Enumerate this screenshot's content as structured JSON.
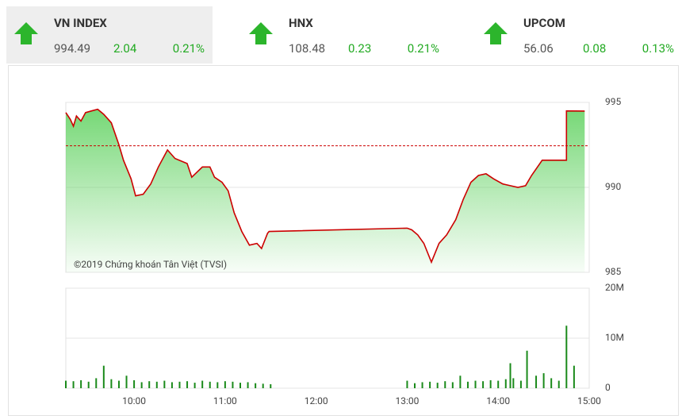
{
  "tickers": [
    {
      "name": "VN INDEX",
      "value": "994.49",
      "change": "2.04",
      "percent": "0.21%"
    },
    {
      "name": "HNX",
      "value": "108.48",
      "change": "0.23",
      "percent": "0.21%"
    },
    {
      "name": "UPCOM",
      "value": "56.06",
      "change": "0.08",
      "percent": "0.13%"
    }
  ],
  "chart_data": [
    {
      "type": "line",
      "annotation": "©2019 Chứng khoán Tân Việt (TVSI)",
      "x": [
        "09:15",
        "09:18",
        "09:20",
        "09:22",
        "09:25",
        "09:28",
        "09:32",
        "09:36",
        "09:40",
        "09:45",
        "09:50",
        "09:53",
        "09:58",
        "10:01",
        "10:06",
        "10:11",
        "10:16",
        "10:22",
        "10:27",
        "10:35",
        "10:38",
        "10:45",
        "10:50",
        "10:53",
        "10:58",
        "11:02",
        "11:06",
        "11:11",
        "11:16",
        "11:21",
        "11:24",
        "11:28",
        "11:29",
        "13:00",
        "13:03",
        "13:07",
        "13:11",
        "13:16",
        "13:21",
        "13:26",
        "13:32",
        "13:37",
        "13:42",
        "13:47",
        "13:52",
        "13:57",
        "14:03",
        "14:08",
        "14:13",
        "14:18",
        "14:22",
        "14:29",
        "14:36",
        "14:45",
        "14:45",
        "14:57"
      ],
      "values": [
        994.4,
        994.0,
        993.6,
        994.2,
        993.9,
        994.4,
        994.5,
        994.6,
        994.3,
        993.8,
        992.5,
        991.6,
        990.5,
        989.5,
        989.6,
        990.2,
        991.2,
        992.2,
        991.7,
        991.4,
        990.6,
        991.2,
        991.2,
        990.6,
        990.3,
        989.8,
        988.5,
        987.4,
        986.6,
        986.7,
        986.4,
        987.3,
        987.4,
        987.6,
        987.5,
        987.2,
        986.7,
        985.6,
        986.7,
        987.2,
        988.1,
        989.3,
        990.3,
        990.7,
        990.8,
        990.5,
        990.2,
        990.1,
        990.0,
        990.1,
        990.7,
        991.6,
        991.6,
        991.6,
        994.5,
        994.49
      ],
      "color": "#cc0000",
      "fill": "#6fd66f",
      "reference_line": 992.45,
      "reference_color": "#cc0000",
      "xlim": [
        "09:15",
        "15:00"
      ],
      "ylim": [
        985,
        995
      ],
      "yticks": [
        985,
        990,
        995
      ],
      "grid": true
    },
    {
      "type": "bar",
      "x": [
        "09:15",
        "09:20",
        "09:25",
        "09:30",
        "09:35",
        "09:40",
        "09:45",
        "09:50",
        "09:55",
        "10:00",
        "10:05",
        "10:10",
        "10:15",
        "10:20",
        "10:25",
        "10:30",
        "10:35",
        "10:40",
        "10:45",
        "10:50",
        "10:55",
        "11:00",
        "11:05",
        "11:10",
        "11:15",
        "11:20",
        "11:25",
        "11:30",
        "13:00",
        "13:05",
        "13:10",
        "13:15",
        "13:20",
        "13:25",
        "13:30",
        "13:35",
        "13:40",
        "13:45",
        "13:50",
        "13:55",
        "14:00",
        "14:05",
        "14:08",
        "14:10",
        "14:15",
        "14:19",
        "14:25",
        "14:30",
        "14:35",
        "14:40",
        "14:45",
        "14:50"
      ],
      "values": [
        1500000,
        1400000,
        1600000,
        1300000,
        2000000,
        4500000,
        1800000,
        1500000,
        2500000,
        1600000,
        1200000,
        1400000,
        1300000,
        1500000,
        1200000,
        1300000,
        1400000,
        1100000,
        1500000,
        1300000,
        1200000,
        1400000,
        1300000,
        1100000,
        1200000,
        1000000,
        900000,
        800000,
        1500000,
        1000000,
        1200000,
        1300000,
        1100000,
        1400000,
        1200000,
        2500000,
        1300000,
        1500000,
        1400000,
        1600000,
        1500000,
        1800000,
        5000000,
        2000000,
        1500000,
        7500000,
        2500000,
        3000000,
        2000000,
        1500000,
        12500000,
        4500000
      ],
      "color": "#1a8a1a",
      "xlim": [
        "09:15",
        "15:00"
      ],
      "xticks": [
        "10:00",
        "11:00",
        "12:00",
        "13:00",
        "14:00",
        "15:00"
      ],
      "ylim": [
        0,
        20000000
      ],
      "yticks": [
        {
          "value": 0,
          "label": "0"
        },
        {
          "value": 10000000,
          "label": "10M"
        },
        {
          "value": 20000000,
          "label": "20M"
        }
      ],
      "grid": true
    }
  ]
}
